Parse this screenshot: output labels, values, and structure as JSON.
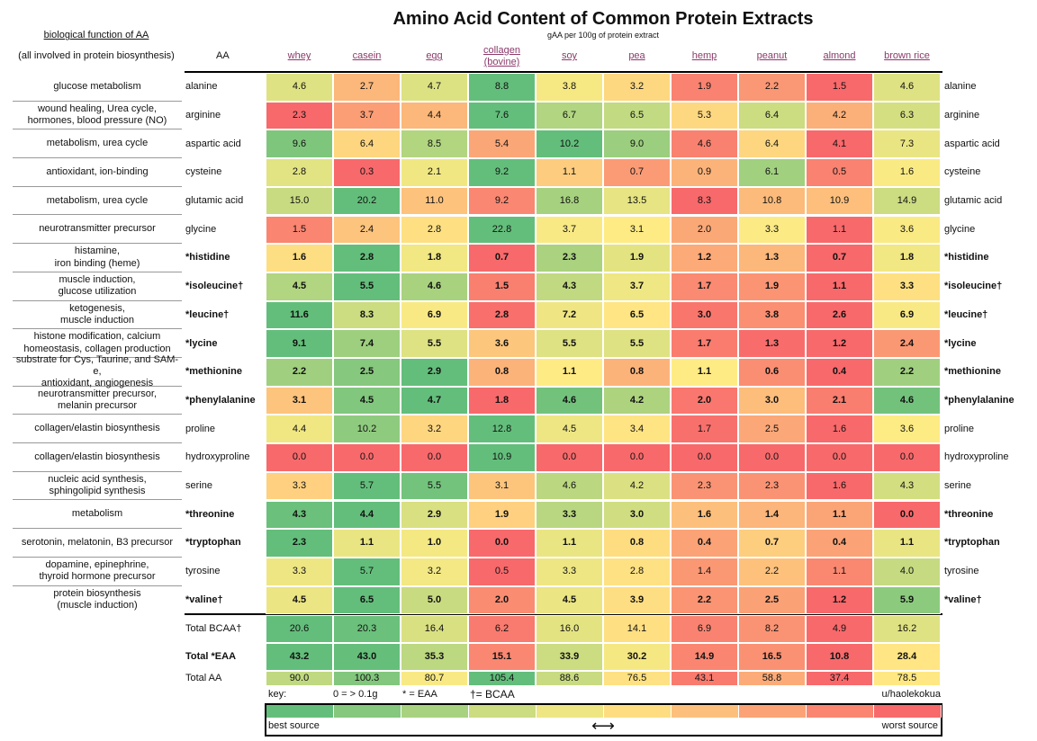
{
  "title": "Amino Acid Content of Common Protein Extracts",
  "subtitle": "gAA per 100g of protein extract",
  "header": {
    "function_title": "biological function of AA",
    "function_note": "(all involved in protein biosynthesis)",
    "aa": "AA",
    "extracts": [
      "whey",
      "casein",
      "egg",
      "collagen\n(bovine)",
      "soy",
      "pea",
      "hemp",
      "peanut",
      "almond",
      "brown rice"
    ]
  },
  "color_scale": [
    "#f8696b",
    "#ffeb84",
    "#63be7b"
  ],
  "rows": [
    {
      "function": "glucose metabolism",
      "aa": "alanine",
      "bold": false,
      "values": [
        "4.6",
        "2.7",
        "4.7",
        "8.8",
        "3.8",
        "3.2",
        "1.9",
        "2.2",
        "1.5",
        "4.6"
      ]
    },
    {
      "function": "wound healing, Urea cycle,\nhormones, blood pressure (NO)",
      "aa": "arginine",
      "bold": false,
      "values": [
        "2.3",
        "3.7",
        "4.4",
        "7.6",
        "6.7",
        "6.5",
        "5.3",
        "6.4",
        "4.2",
        "6.3"
      ]
    },
    {
      "function": "metabolism, urea cycle",
      "aa": "aspartic acid",
      "bold": false,
      "values": [
        "9.6",
        "6.4",
        "8.5",
        "5.4",
        "10.2",
        "9.0",
        "4.6",
        "6.4",
        "4.1",
        "7.3"
      ]
    },
    {
      "function": "antioxidant, ion-binding",
      "aa": "cysteine",
      "bold": false,
      "values": [
        "2.8",
        "0.3",
        "2.1",
        "9.2",
        "1.1",
        "0.7",
        "0.9",
        "6.1",
        "0.5",
        "1.6"
      ]
    },
    {
      "function": "metabolism, urea cycle",
      "aa": "glutamic acid",
      "bold": false,
      "values": [
        "15.0",
        "20.2",
        "11.0",
        "9.2",
        "16.8",
        "13.5",
        "8.3",
        "10.8",
        "10.9",
        "14.9"
      ]
    },
    {
      "function": "neurotransmitter precursor",
      "aa": "glycine",
      "bold": false,
      "values": [
        "1.5",
        "2.4",
        "2.8",
        "22.8",
        "3.7",
        "3.1",
        "2.0",
        "3.3",
        "1.1",
        "3.6"
      ]
    },
    {
      "function": "histamine,\niron binding (heme)",
      "aa": "*histidine",
      "bold": true,
      "values": [
        "1.6",
        "2.8",
        "1.8",
        "0.7",
        "2.3",
        "1.9",
        "1.2",
        "1.3",
        "0.7",
        "1.8"
      ]
    },
    {
      "function": "muscle induction,\nglucose utilization",
      "aa": "*isoleucine†",
      "bold": true,
      "values": [
        "4.5",
        "5.5",
        "4.6",
        "1.5",
        "4.3",
        "3.7",
        "1.7",
        "1.9",
        "1.1",
        "3.3"
      ]
    },
    {
      "function": "ketogenesis,\nmuscle induction",
      "aa": "*leucine†",
      "bold": true,
      "values": [
        "11.6",
        "8.3",
        "6.9",
        "2.8",
        "7.2",
        "6.5",
        "3.0",
        "3.8",
        "2.6",
        "6.9"
      ]
    },
    {
      "function": "histone modification, calcium\nhomeostasis, collagen production",
      "aa": "*lycine",
      "bold": true,
      "values": [
        "9.1",
        "7.4",
        "5.5",
        "3.6",
        "5.5",
        "5.5",
        "1.7",
        "1.3",
        "1.2",
        "2.4"
      ]
    },
    {
      "function": "substrate for Cys, Taurine, and SAM-e,\nantioxidant, angiogenesis",
      "aa": "*methionine",
      "bold": true,
      "values": [
        "2.2",
        "2.5",
        "2.9",
        "0.8",
        "1.1",
        "0.8",
        "1.1",
        "0.6",
        "0.4",
        "2.2"
      ]
    },
    {
      "function": "neurotransmitter precursor,\nmelanin precursor",
      "aa": "*phenylalanine",
      "bold": true,
      "values": [
        "3.1",
        "4.5",
        "4.7",
        "1.8",
        "4.6",
        "4.2",
        "2.0",
        "3.0",
        "2.1",
        "4.6"
      ]
    },
    {
      "function": "collagen/elastin biosynthesis",
      "aa": "proline",
      "bold": false,
      "values": [
        "4.4",
        "10.2",
        "3.2",
        "12.8",
        "4.5",
        "3.4",
        "1.7",
        "2.5",
        "1.6",
        "3.6"
      ]
    },
    {
      "function": "collagen/elastin biosynthesis",
      "aa": "hydroxyproline",
      "bold": false,
      "values": [
        "0.0",
        "0.0",
        "0.0",
        "10.9",
        "0.0",
        "0.0",
        "0.0",
        "0.0",
        "0.0",
        "0.0"
      ]
    },
    {
      "function": "nucleic acid synthesis,\nsphingolipid synthesis",
      "aa": "serine",
      "bold": false,
      "values": [
        "3.3",
        "5.7",
        "5.5",
        "3.1",
        "4.6",
        "4.2",
        "2.3",
        "2.3",
        "1.6",
        "4.3"
      ]
    },
    {
      "function": "metabolism",
      "aa": "*threonine",
      "bold": true,
      "values": [
        "4.3",
        "4.4",
        "2.9",
        "1.9",
        "3.3",
        "3.0",
        "1.6",
        "1.4",
        "1.1",
        "0.0"
      ]
    },
    {
      "function": "serotonin, melatonin, B3 precursor",
      "aa": "*tryptophan",
      "bold": true,
      "values": [
        "2.3",
        "1.1",
        "1.0",
        "0.0",
        "1.1",
        "0.8",
        "0.4",
        "0.7",
        "0.4",
        "1.1"
      ]
    },
    {
      "function": "dopamine, epinephrine,\nthyroid hormone precursor",
      "aa": "tyrosine",
      "bold": false,
      "values": [
        "3.3",
        "5.7",
        "3.2",
        "0.5",
        "3.3",
        "2.8",
        "1.4",
        "2.2",
        "1.1",
        "4.0"
      ]
    },
    {
      "function": "protein biosynthesis\n(muscle induction)",
      "aa": "*valine†",
      "bold": true,
      "values": [
        "4.5",
        "6.5",
        "5.0",
        "2.0",
        "4.5",
        "3.9",
        "2.2",
        "2.5",
        "1.2",
        "5.9"
      ]
    }
  ],
  "totals": [
    {
      "label": "Total BCAA†",
      "bold": false,
      "values": [
        "20.6",
        "20.3",
        "16.4",
        "6.2",
        "16.0",
        "14.1",
        "6.9",
        "8.2",
        "4.9",
        "16.2"
      ]
    },
    {
      "label": "Total *EAA",
      "bold": true,
      "values": [
        "43.2",
        "43.0",
        "35.3",
        "15.1",
        "33.9",
        "30.2",
        "14.9",
        "16.5",
        "10.8",
        "28.4"
      ]
    },
    {
      "label": "Total AA",
      "bold": false,
      "values": [
        "90.0",
        "100.3",
        "80.7",
        "105.4",
        "88.6",
        "76.5",
        "43.1",
        "58.8",
        "37.4",
        "78.5"
      ]
    }
  ],
  "key": {
    "label": "key:",
    "zero": "0 = > 0.1g",
    "eaa": "* = EAA",
    "bcaa": "†= BCAA",
    "credit": "u/haolekokua",
    "best": "best source",
    "arrow": "⟷",
    "worst": "worst source"
  }
}
